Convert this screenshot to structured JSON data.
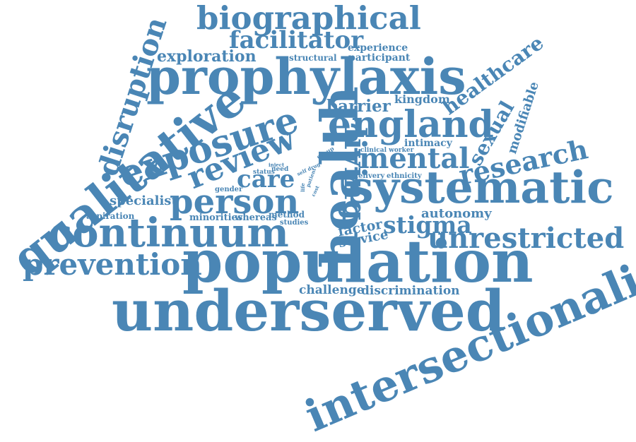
{
  "theme": {
    "word_color": "#4a86b5",
    "background": "#ffffff"
  },
  "words": [
    {
      "text": "underserved"
    },
    {
      "text": "population"
    },
    {
      "text": "intersectionality"
    },
    {
      "text": "systematic"
    },
    {
      "text": "prophylaxis"
    },
    {
      "text": "qualitative"
    },
    {
      "text": "health"
    },
    {
      "text": "continuum"
    },
    {
      "text": "exposure"
    },
    {
      "text": "england"
    },
    {
      "text": "biographical"
    },
    {
      "text": "person"
    },
    {
      "text": "prevention"
    },
    {
      "text": "review"
    },
    {
      "text": "disruption"
    },
    {
      "text": "mental"
    },
    {
      "text": "living"
    },
    {
      "text": "research"
    },
    {
      "text": "unrestricted"
    },
    {
      "text": "facilitator"
    },
    {
      "text": "care"
    },
    {
      "text": "stigma"
    },
    {
      "text": "healthcare"
    },
    {
      "text": "sexual"
    },
    {
      "text": "exploration"
    },
    {
      "text": "barrier"
    },
    {
      "text": "specialist"
    },
    {
      "text": "modifiable"
    },
    {
      "text": "autonomy"
    },
    {
      "text": "factor"
    },
    {
      "text": "service"
    },
    {
      "text": "challenge"
    },
    {
      "text": "discrimination"
    },
    {
      "text": "kingdom"
    },
    {
      "text": "intimacy"
    },
    {
      "text": "experience"
    },
    {
      "text": "participant"
    },
    {
      "text": "structural"
    },
    {
      "text": "minorities"
    },
    {
      "text": "whereas"
    },
    {
      "text": "method"
    },
    {
      "text": "aspiration"
    },
    {
      "text": "studies"
    },
    {
      "text": "gender"
    },
    {
      "text": "delivery"
    },
    {
      "text": "ethnicity"
    },
    {
      "text": "clinical worker"
    },
    {
      "text": "status"
    },
    {
      "text": "need"
    },
    {
      "text": "inject"
    },
    {
      "text": "group"
    },
    {
      "text": "self drug"
    },
    {
      "text": "patient"
    },
    {
      "text": "cost"
    },
    {
      "text": "life"
    }
  ]
}
